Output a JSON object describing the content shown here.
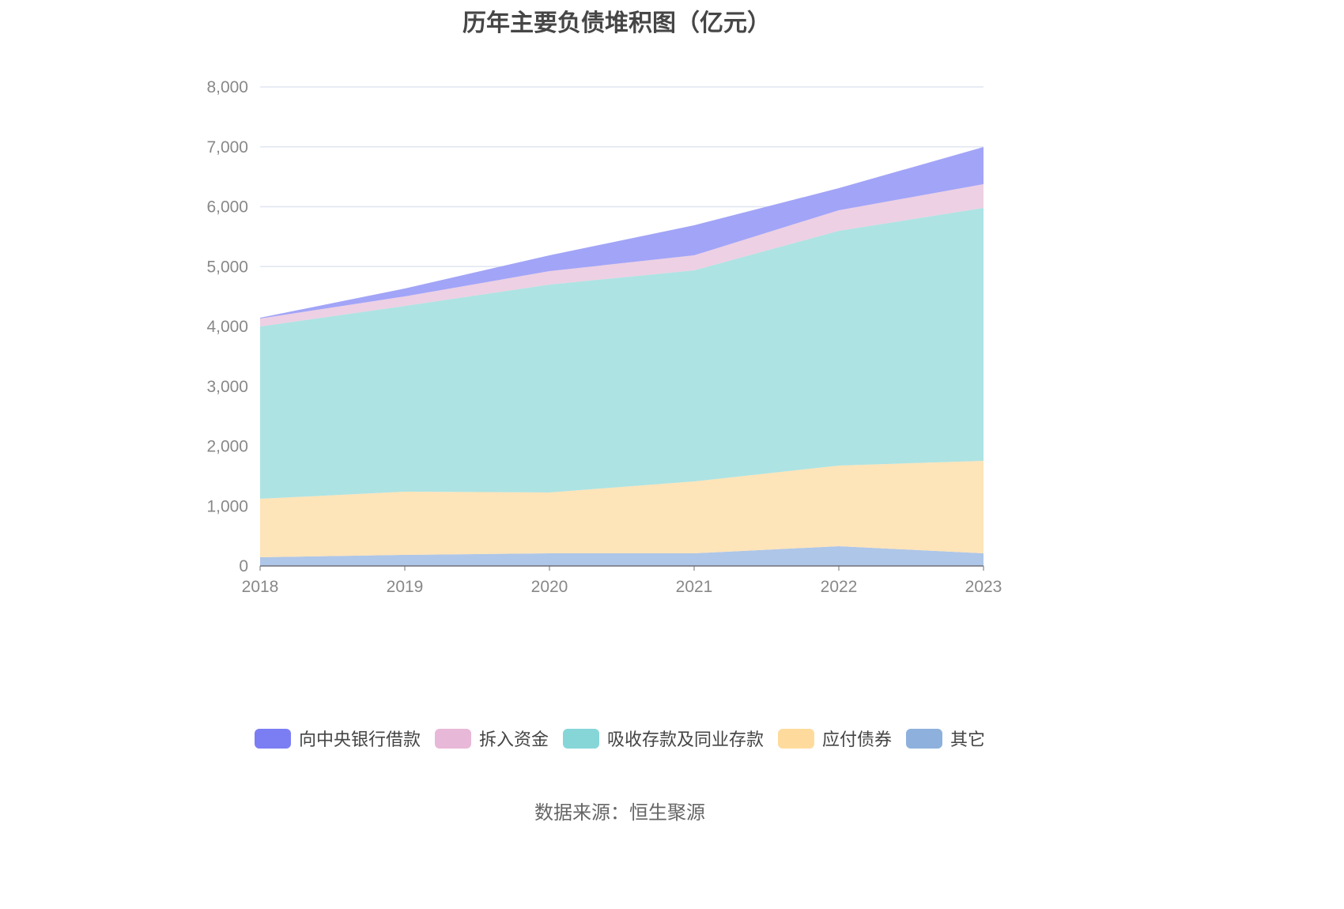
{
  "chart_data": {
    "type": "area",
    "stacked": true,
    "title": "历年主要负债堆积图（亿元）",
    "xlabel": "",
    "ylabel": "",
    "x": [
      "2018",
      "2019",
      "2020",
      "2021",
      "2022",
      "2023"
    ],
    "ylim": [
      0,
      8000
    ],
    "yticks": [
      "0",
      "1,000",
      "2,000",
      "3,000",
      "4,000",
      "5,000",
      "6,000",
      "7,000",
      "8,000"
    ],
    "grid": true,
    "legend_position": "bottom",
    "series": [
      {
        "name": "其它",
        "color": "#8eb0dc",
        "fill": "#aec6e8",
        "values": [
          145,
          185,
          211,
          211,
          330,
          211
        ]
      },
      {
        "name": "应付债券",
        "color": "#fedb9d",
        "fill": "#fde4b9",
        "values": [
          977,
          1056,
          1017,
          1201,
          1347,
          1545
        ]
      },
      {
        "name": "吸收存款及同业存款",
        "color": "#86d6d8",
        "fill": "#ade3e3",
        "values": [
          2878,
          3102,
          3472,
          3525,
          3920,
          4224
        ]
      },
      {
        "name": "拆入资金",
        "color": "#e8b8d8",
        "fill": "#edd0e3",
        "values": [
          132,
          159,
          224,
          251,
          344,
          396
        ]
      },
      {
        "name": "向中央银行借款",
        "color": "#7b7ef3",
        "fill": "#a2a4f7",
        "values": [
          13,
          132,
          264,
          502,
          369,
          621
        ]
      }
    ],
    "legend_order": [
      "向中央银行借款",
      "拆入资金",
      "吸收存款及同业存款",
      "应付债券",
      "其它"
    ]
  },
  "source": "数据来源：恒生聚源"
}
